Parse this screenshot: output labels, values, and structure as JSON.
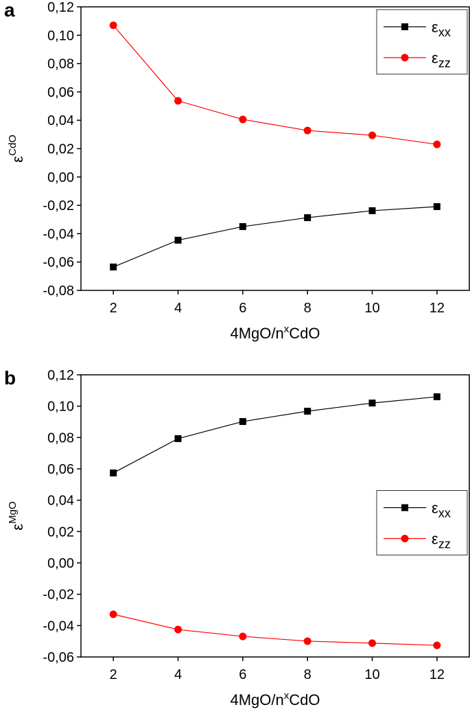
{
  "chart_data": [
    {
      "type": "line",
      "panel": "a",
      "y_label": {
        "base": "ε",
        "sup": "CdO"
      },
      "x_label": {
        "base": "4MgO/n",
        "sup": "x",
        "rest": "CdO"
      },
      "x": [
        2,
        4,
        6,
        8,
        10,
        12
      ],
      "series": [
        {
          "name": "ε",
          "subscript": "xx",
          "color": "#000000",
          "marker": "square",
          "values": [
            -0.0635,
            -0.0446,
            -0.035,
            -0.0287,
            -0.0238,
            -0.0209
          ]
        },
        {
          "name": "ε",
          "subscript": "zz",
          "color": "#ff0000",
          "marker": "circle",
          "values": [
            0.107,
            0.0537,
            0.0406,
            0.0328,
            0.0294,
            0.023
          ]
        }
      ],
      "xlim": [
        1,
        13
      ],
      "xticks": [
        2,
        4,
        6,
        8,
        10,
        12
      ],
      "ylim": [
        -0.08,
        0.12
      ],
      "yticks": [
        {
          "value": -0.08,
          "label": "-0,08"
        },
        {
          "value": -0.06,
          "label": "-0,06"
        },
        {
          "value": -0.04,
          "label": "-0,04"
        },
        {
          "value": -0.02,
          "label": "-0,02"
        },
        {
          "value": 0,
          "label": "0,00"
        },
        {
          "value": 0.02,
          "label": "0,02"
        },
        {
          "value": 0.04,
          "label": "0,04"
        },
        {
          "value": 0.06,
          "label": "0,06"
        },
        {
          "value": 0.08,
          "label": "0,08"
        },
        {
          "value": 0.1,
          "label": "0,10"
        },
        {
          "value": 0.12,
          "label": "0,12"
        }
      ],
      "legend": "upper right"
    },
    {
      "type": "line",
      "panel": "b",
      "y_label": {
        "base": "ε",
        "sup": "MgO"
      },
      "x_label": {
        "base": "4MgO/n",
        "sup": "x",
        "rest": "CdO"
      },
      "x": [
        2,
        4,
        6,
        8,
        10,
        12
      ],
      "series": [
        {
          "name": "ε",
          "subscript": "xx",
          "color": "#000000",
          "marker": "square",
          "values": [
            0.0574,
            0.0793,
            0.0902,
            0.0968,
            0.102,
            0.106
          ]
        },
        {
          "name": "ε",
          "subscript": "zz",
          "color": "#ff0000",
          "marker": "circle",
          "values": [
            -0.0328,
            -0.0425,
            -0.0469,
            -0.0499,
            -0.0512,
            -0.0526
          ]
        }
      ],
      "xlim": [
        1,
        13
      ],
      "xticks": [
        2,
        4,
        6,
        8,
        10,
        12
      ],
      "ylim": [
        -0.06,
        0.12
      ],
      "yticks": [
        {
          "value": -0.06,
          "label": "-0,06"
        },
        {
          "value": -0.04,
          "label": "-0,04"
        },
        {
          "value": -0.02,
          "label": "-0,02"
        },
        {
          "value": 0,
          "label": "0,00"
        },
        {
          "value": 0.02,
          "label": "0,02"
        },
        {
          "value": 0.04,
          "label": "0,04"
        },
        {
          "value": 0.06,
          "label": "0,06"
        },
        {
          "value": 0.08,
          "label": "0,08"
        },
        {
          "value": 0.1,
          "label": "0,10"
        },
        {
          "value": 0.12,
          "label": "0,12"
        }
      ],
      "legend": "center right"
    }
  ]
}
